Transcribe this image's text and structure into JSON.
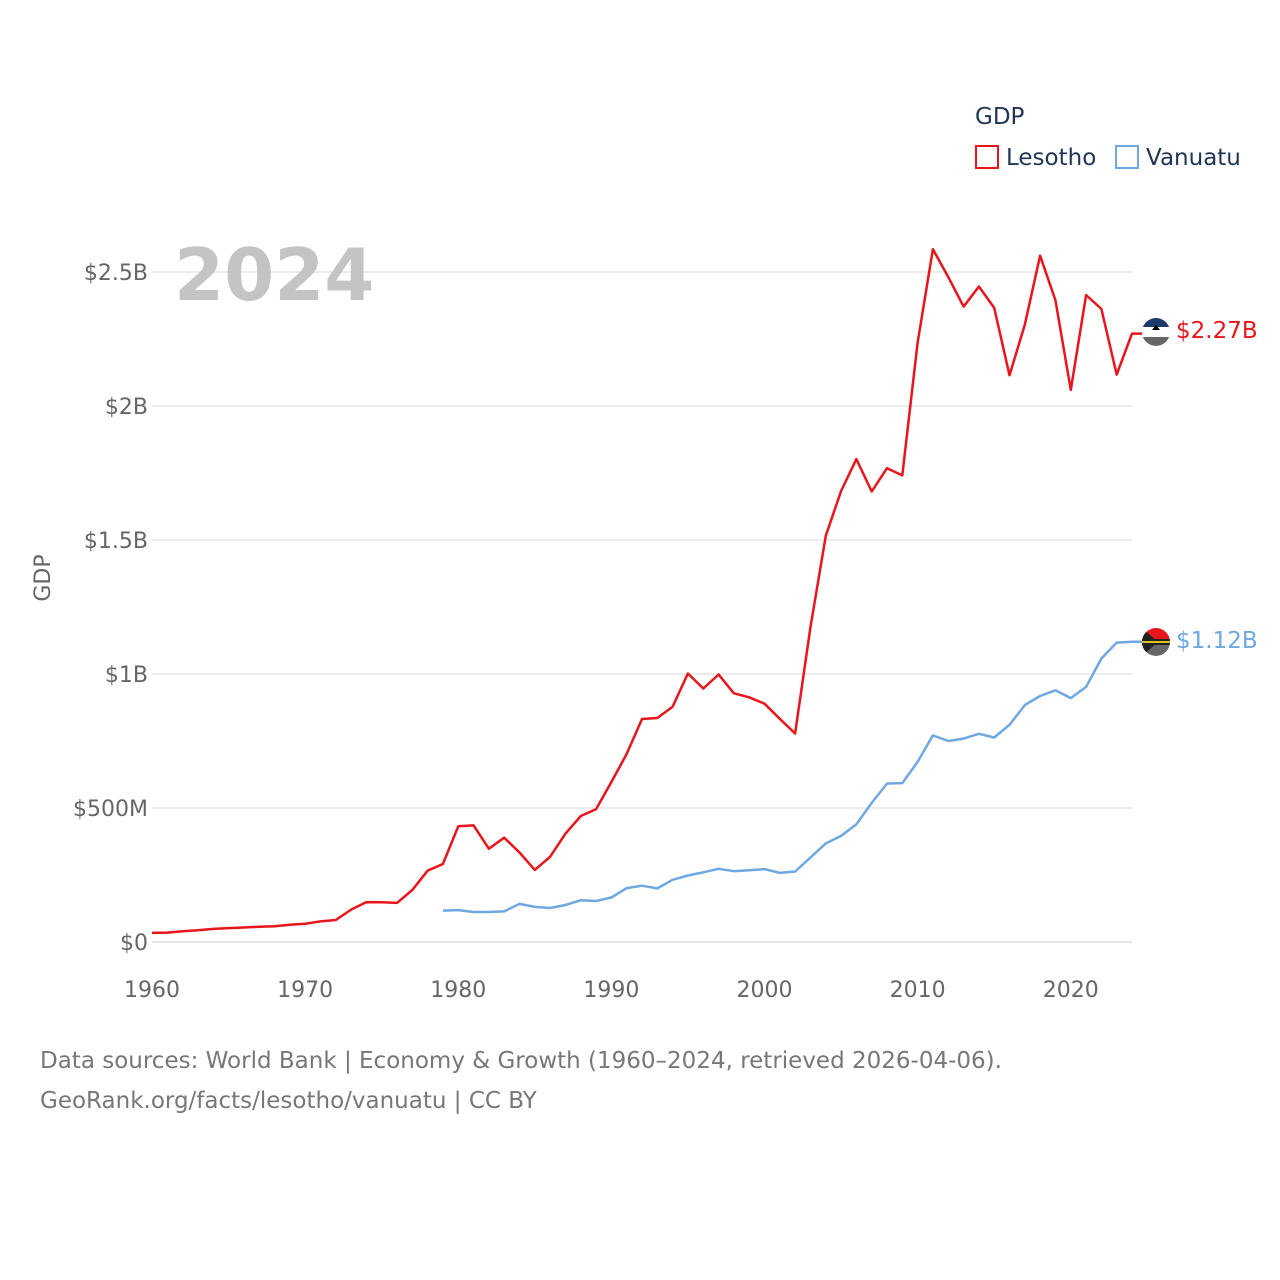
{
  "chart_data": {
    "type": "line",
    "ylabel": "GDP",
    "year_label": "2024",
    "legend_title": "GDP",
    "legend_position": "top-right",
    "grid": true,
    "xlim": [
      1960,
      2024
    ],
    "ylim": [
      0,
      2.5
    ],
    "x_ticks": [
      1960,
      1970,
      1980,
      1990,
      2000,
      2010,
      2020
    ],
    "y_ticks": [
      {
        "value": 0,
        "label": "$0"
      },
      {
        "value": 0.5,
        "label": "$500M"
      },
      {
        "value": 1,
        "label": "$1B"
      },
      {
        "value": 1.5,
        "label": "$1.5B"
      },
      {
        "value": 2,
        "label": "$2B"
      },
      {
        "value": 2.5,
        "label": "$2.5B"
      }
    ],
    "units": "USD billions",
    "series": [
      {
        "name": "Lesotho",
        "color": "#e8151b",
        "end_label": "$2.27B",
        "start_year": 1960,
        "values": [
          0.034,
          0.035,
          0.04,
          0.044,
          0.049,
          0.052,
          0.054,
          0.057,
          0.059,
          0.064,
          0.068,
          0.077,
          0.082,
          0.121,
          0.149,
          0.148,
          0.146,
          0.194,
          0.266,
          0.291,
          0.432,
          0.435,
          0.348,
          0.389,
          0.334,
          0.269,
          0.318,
          0.404,
          0.47,
          0.496,
          0.597,
          0.702,
          0.832,
          0.836,
          0.878,
          1.002,
          0.946,
          0.998,
          0.928,
          0.913,
          0.889,
          0.833,
          0.778,
          1.173,
          1.516,
          1.683,
          1.802,
          1.681,
          1.768,
          1.741,
          2.236,
          2.585,
          2.481,
          2.371,
          2.446,
          2.366,
          2.115,
          2.303,
          2.561,
          2.395,
          2.06,
          2.414,
          2.362,
          2.117,
          2.27
        ]
      },
      {
        "name": "Vanuatu",
        "color": "#6fa8e0",
        "end_label": "$1.12B",
        "start_year": 1979,
        "values": [
          0.117,
          0.119,
          0.112,
          0.112,
          0.114,
          0.142,
          0.131,
          0.127,
          0.138,
          0.156,
          0.153,
          0.166,
          0.201,
          0.21,
          0.2,
          0.232,
          0.248,
          0.26,
          0.273,
          0.264,
          0.268,
          0.272,
          0.258,
          0.263,
          0.315,
          0.368,
          0.396,
          0.439,
          0.519,
          0.591,
          0.593,
          0.672,
          0.771,
          0.75,
          0.759,
          0.777,
          0.763,
          0.81,
          0.884,
          0.918,
          0.939,
          0.91,
          0.952,
          1.058,
          1.117,
          1.12
        ]
      }
    ]
  },
  "source": {
    "line1": "Data sources: World Bank | Economy & Growth (1960–2024, retrieved 2026-04-06).",
    "line2": "GeoRank.org/facts/lesotho/vanuatu | CC BY"
  }
}
